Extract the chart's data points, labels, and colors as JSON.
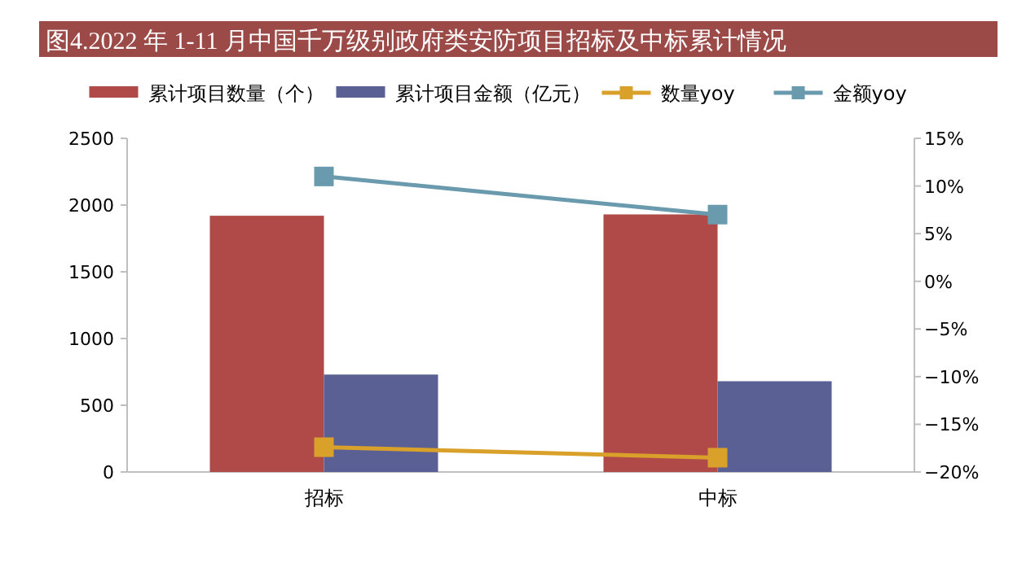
{
  "chart_data": {
    "type": "bar",
    "title": "图4.2022 年 1-11 月中国千万级别政府类安防项目招标及中标累计情况",
    "categories": [
      "招标",
      "中标"
    ],
    "series": [
      {
        "name": "累计项目数量（个）",
        "color": "#b04a48",
        "values": [
          1920,
          1930
        ]
      },
      {
        "name": "累计项目金额（亿元）",
        "color": "#5b6094",
        "values": [
          730,
          680
        ]
      },
      {
        "name": "数量yoy",
        "type": "line",
        "axis": "y2",
        "color": "#d9a02a",
        "values": [
          -17.4,
          -18.5
        ]
      },
      {
        "name": "金额yoy",
        "type": "line",
        "axis": "y2",
        "color": "#6a9aad",
        "values": [
          11.0,
          7.0
        ]
      }
    ],
    "ylim": [
      0,
      2500
    ],
    "yticks": [
      0,
      500,
      1000,
      1500,
      2000,
      2500
    ],
    "y2lim": [
      -20,
      15
    ],
    "y2ticks": [
      {
        "value": -20,
        "label": "−20%"
      },
      {
        "value": -15,
        "label": "−15%"
      },
      {
        "value": -10,
        "label": "−10%"
      },
      {
        "value": -5,
        "label": "−5%"
      },
      {
        "value": 0,
        "label": "0%"
      },
      {
        "value": 5,
        "label": "5%"
      },
      {
        "value": 10,
        "label": "10%"
      },
      {
        "value": 15,
        "label": "15%"
      }
    ],
    "marker": "square",
    "legend": "top",
    "grid": false
  }
}
